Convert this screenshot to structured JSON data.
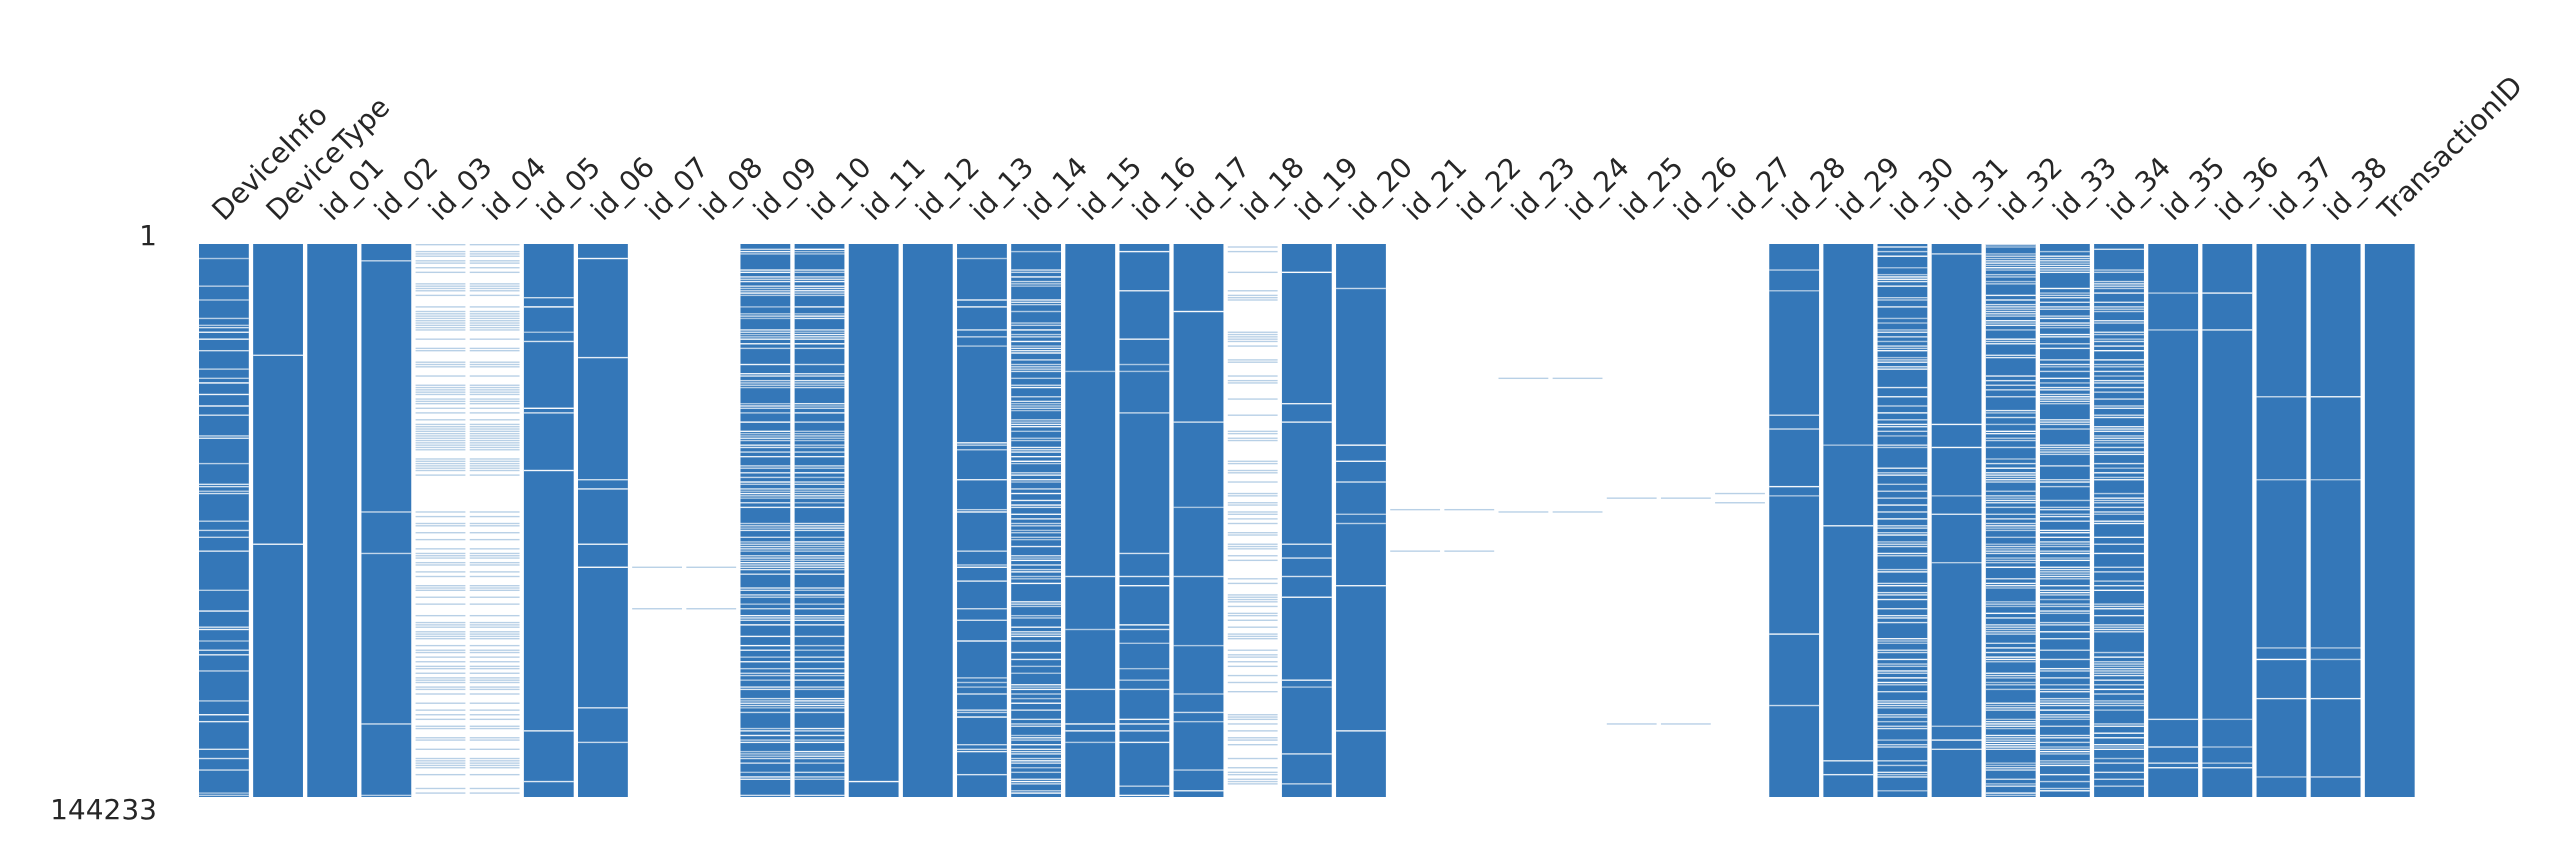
{
  "chart_data": {
    "type": "matrix",
    "columns": [
      "DeviceInfo",
      "DeviceType",
      "id_01",
      "id_02",
      "id_03",
      "id_04",
      "id_05",
      "id_06",
      "id_07",
      "id_08",
      "id_09",
      "id_10",
      "id_11",
      "id_12",
      "id_13",
      "id_14",
      "id_15",
      "id_16",
      "id_17",
      "id_18",
      "id_19",
      "id_20",
      "id_21",
      "id_22",
      "id_23",
      "id_24",
      "id_25",
      "id_26",
      "id_27",
      "id_28",
      "id_29",
      "id_30",
      "id_31",
      "id_32",
      "id_33",
      "id_34",
      "id_35",
      "id_36",
      "id_37",
      "id_38",
      "TransactionID"
    ],
    "values": [
      82,
      98,
      100,
      98,
      46,
      46,
      95,
      95,
      1,
      1,
      52,
      52,
      98,
      100,
      88,
      55,
      98,
      90,
      97,
      31,
      97,
      97,
      1,
      1,
      1,
      1,
      1,
      1,
      1,
      98,
      98,
      54,
      97,
      54,
      51,
      54,
      98,
      98,
      98,
      98,
      100
    ],
    "ylim": [
      1,
      144233
    ],
    "yticks": [
      1,
      144233
    ],
    "color": "#3477b8"
  }
}
